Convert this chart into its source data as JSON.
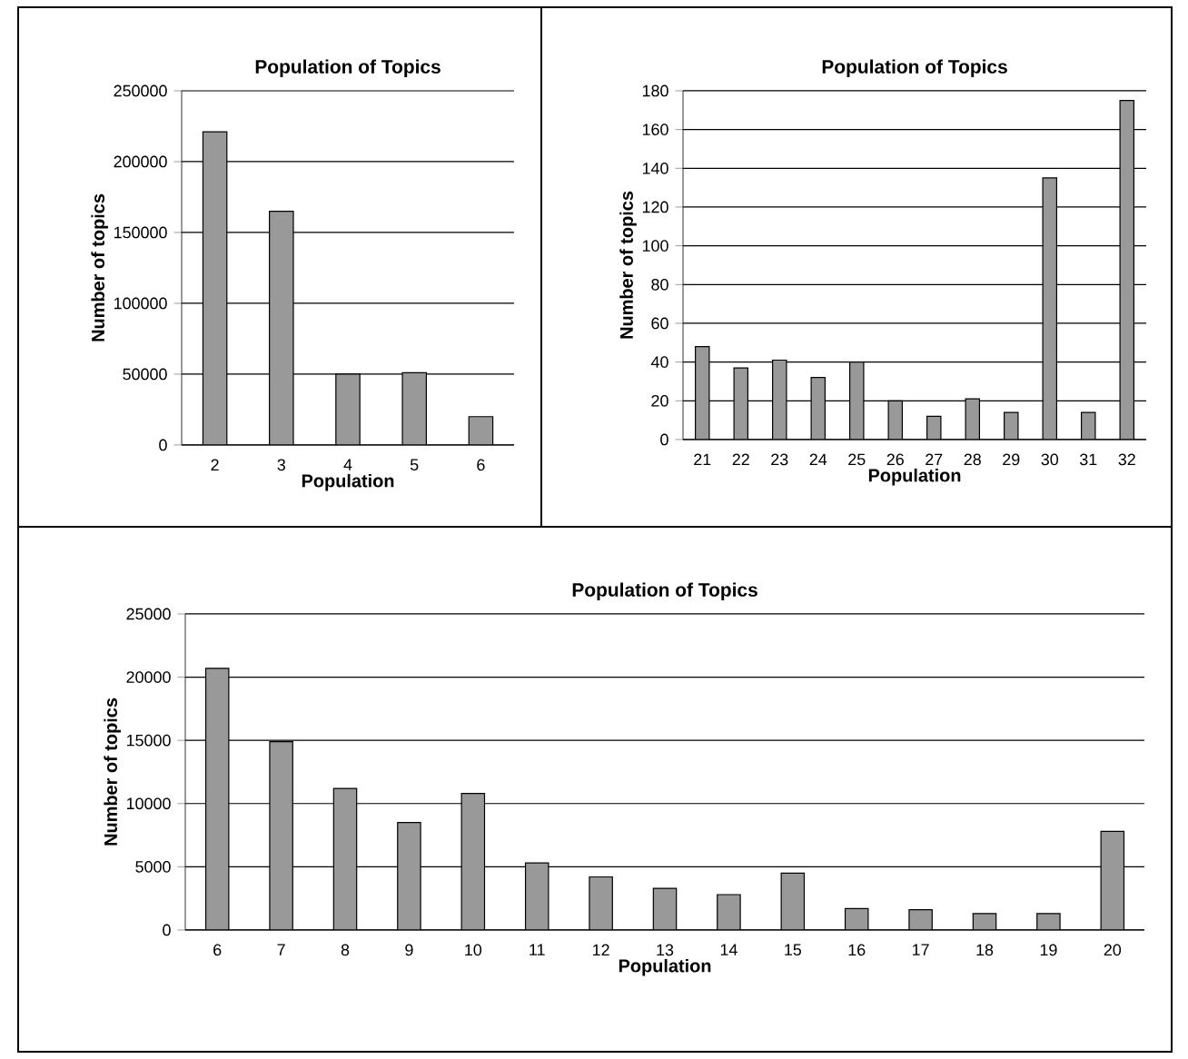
{
  "chart_data": [
    {
      "type": "bar",
      "title": "Population of Topics",
      "xlabel": "Population",
      "ylabel": "Number of topics",
      "categories": [
        "2",
        "3",
        "4",
        "5",
        "6"
      ],
      "values": [
        221000,
        165000,
        50000,
        51000,
        20000
      ],
      "color": "#999999",
      "ylim": [
        0,
        250000
      ],
      "yticks": [
        0,
        50000,
        100000,
        150000,
        200000,
        250000
      ],
      "grid": "y"
    },
    {
      "type": "bar",
      "title": "Population of Topics",
      "xlabel": "Population",
      "ylabel": "Number of topics",
      "categories": [
        "21",
        "22",
        "23",
        "24",
        "25",
        "26",
        "27",
        "28",
        "29",
        "30",
        "31",
        "32"
      ],
      "values": [
        48,
        37,
        41,
        32,
        40,
        20,
        12,
        21,
        14,
        135,
        14,
        175
      ],
      "color": "#999999",
      "ylim": [
        0,
        180
      ],
      "yticks": [
        0,
        20,
        40,
        60,
        80,
        100,
        120,
        140,
        160,
        180
      ],
      "grid": "y"
    },
    {
      "type": "bar",
      "title": "Population of Topics",
      "xlabel": "Population",
      "ylabel": "Number of topics",
      "categories": [
        "6",
        "7",
        "8",
        "9",
        "10",
        "11",
        "12",
        "13",
        "14",
        "15",
        "16",
        "17",
        "18",
        "19",
        "20"
      ],
      "values": [
        20700,
        14900,
        11200,
        8500,
        10800,
        5300,
        4200,
        3300,
        2800,
        4500,
        1700,
        1600,
        1300,
        1300,
        7800
      ],
      "color": "#999999",
      "ylim": [
        0,
        25000
      ],
      "yticks": [
        0,
        5000,
        10000,
        15000,
        20000,
        25000
      ],
      "grid": "y"
    }
  ]
}
